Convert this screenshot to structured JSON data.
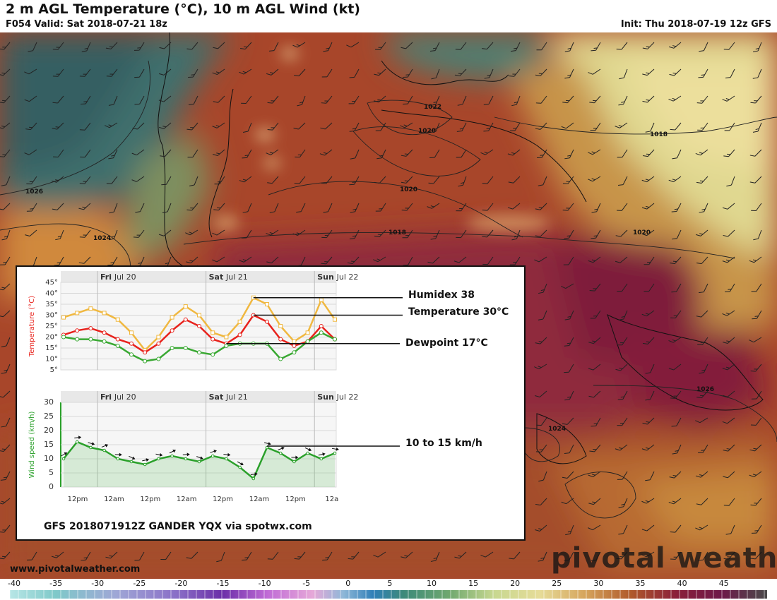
{
  "header": {
    "title": "2 m AGL Temperature (°C), 10 m AGL Wind (kt)",
    "valid": "F054 Valid: Sat 2018-07-21 18z",
    "init": "Init: Thu 2018-07-19 12z GFS"
  },
  "map": {
    "isobar_labels": [
      "1022",
      "1020",
      "1018",
      "1026",
      "1024",
      "1020",
      "1018",
      "1020",
      "1026",
      "1024"
    ],
    "watermark": "pivotal weather",
    "website": "www.pivotalweather.com"
  },
  "inset": {
    "day_labels": [
      "Fri",
      "Jul 20",
      "Sat",
      "Jul 21",
      "Sun",
      "Jul 22"
    ],
    "temp_axis": {
      "label": "Temperature (°C)",
      "ticks": [
        "45°",
        "40°",
        "35°",
        "30°",
        "25°",
        "20°",
        "15°",
        "10°",
        "5°"
      ]
    },
    "wind_axis": {
      "label": "Wind speed (km/h)",
      "ticks": [
        "30",
        "25",
        "20",
        "15",
        "10",
        "5",
        "0"
      ]
    },
    "time_ticks": [
      "12pm",
      "12am",
      "12pm",
      "12am",
      "12pm",
      "12am",
      "12pm",
      "12a"
    ],
    "callouts": {
      "humidex": "Humidex 38",
      "temperature": "Temperature 30°C",
      "dewpoint": "Dewpoint 17°C",
      "wind": "10 to 15 km/h"
    },
    "caption": "GFS 2018071912Z GANDER YQX via spotwx.com"
  },
  "chart_data": {
    "type": "line",
    "x": [
      "Jul 20 12pm",
      "Jul 20 3pm",
      "Jul 20 6pm",
      "Jul 20 9pm",
      "Jul 21 12am",
      "Jul 21 3am",
      "Jul 21 6am",
      "Jul 21 9am",
      "Jul 21 12pm",
      "Jul 21 3pm",
      "Jul 21 6pm",
      "Jul 21 9pm",
      "Jul 22 12am",
      "Jul 22 3am",
      "Jul 22 6am",
      "Jul 22 9am",
      "Jul 22 12pm",
      "Jul 22 3pm",
      "Jul 22 6pm",
      "Jul 22 9pm",
      "Jul 23 12am"
    ],
    "series": [
      {
        "name": "Humidex",
        "color": "#f0b840",
        "values": [
          29,
          31,
          33,
          31,
          28,
          22,
          14,
          20,
          29,
          34,
          30,
          22,
          20,
          27,
          38,
          35,
          25,
          18,
          22,
          37,
          28
        ]
      },
      {
        "name": "Temperature",
        "color": "#e8221c",
        "values": [
          21,
          23,
          24,
          22,
          19,
          17,
          13,
          17,
          23,
          28,
          25,
          19,
          17,
          21,
          30,
          27,
          19,
          16,
          18,
          25,
          19
        ]
      },
      {
        "name": "Dewpoint",
        "color": "#39a832",
        "values": [
          20,
          19,
          19,
          18,
          16,
          12,
          9,
          10,
          15,
          15,
          13,
          12,
          16,
          17,
          17,
          17,
          10,
          13,
          18,
          22,
          19
        ]
      },
      {
        "name": "Wind speed",
        "color": "#2aa02a",
        "values": [
          10,
          16,
          14,
          13,
          10,
          9,
          8,
          10,
          11,
          10,
          9,
          11,
          10,
          7,
          3,
          14,
          12,
          9,
          12,
          10,
          12
        ]
      }
    ],
    "temp_ylim": [
      5,
      45
    ],
    "wind_ylim": [
      0,
      30
    ],
    "colorbar": {
      "ticks": [
        "-40",
        "-35",
        "-30",
        "-25",
        "-20",
        "-15",
        "-10",
        "-5",
        "0",
        "5",
        "10",
        "15",
        "20",
        "25",
        "30",
        "35",
        "40",
        "45"
      ]
    }
  },
  "colors": {
    "hot_core": "#8a1f3a",
    "warm": "#b04a28",
    "mild": "#cc8a3a",
    "cool": "#e6dc98",
    "cold": "#3d6e6e"
  }
}
